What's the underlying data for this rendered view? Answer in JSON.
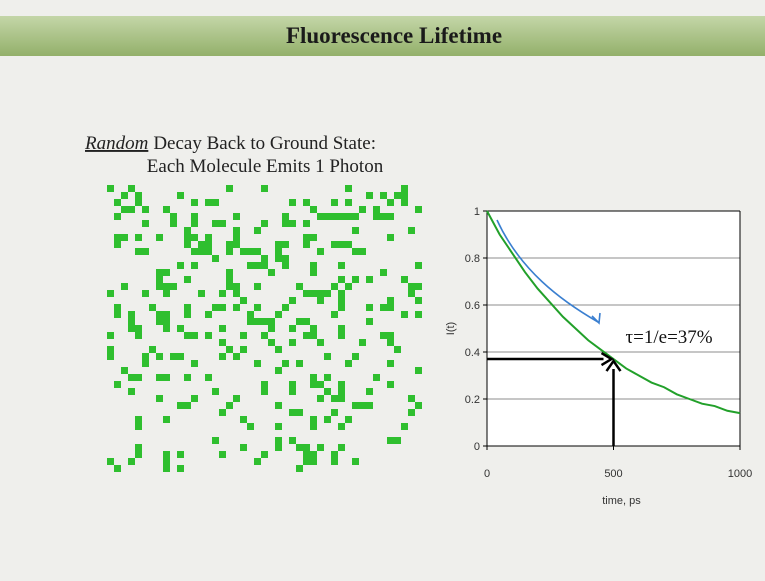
{
  "slide": {
    "title": "Fluorescence Lifetime",
    "heading_em": "Random",
    "heading_rest": "Decay Back to Ground State:",
    "subheading": "Each Molecule Emits 1 Photon"
  },
  "chart_data": {
    "type": "line",
    "x": [
      0,
      50,
      100,
      150,
      200,
      250,
      300,
      350,
      400,
      450,
      500,
      550,
      600,
      650,
      700,
      750,
      800,
      850,
      900,
      950,
      1000
    ],
    "series": [
      {
        "name": "I(t)",
        "color": "#22a02a",
        "values": [
          1,
          0.9,
          0.82,
          0.74,
          0.67,
          0.61,
          0.55,
          0.5,
          0.45,
          0.41,
          0.37,
          0.33,
          0.3,
          0.27,
          0.25,
          0.22,
          0.2,
          0.18,
          0.17,
          0.15,
          0.14
        ]
      }
    ],
    "xlabel": "time, ps",
    "ylabel": "I(t)",
    "xlim": [
      0,
      1000
    ],
    "xticks": [
      0,
      500,
      1000
    ],
    "ylim": [
      0,
      1
    ],
    "yticks": [
      0,
      0.2,
      0.4,
      0.6,
      0.8,
      1
    ],
    "grid": true,
    "annotation": {
      "text": "τ=1/e=37%",
      "x": 500,
      "y": 0.37
    }
  }
}
